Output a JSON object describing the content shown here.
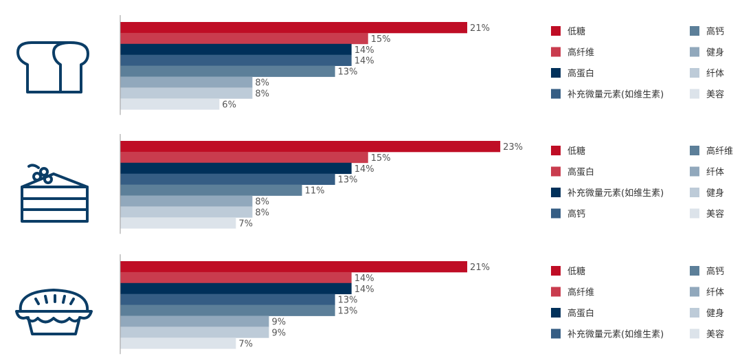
{
  "colors": {
    "palette": [
      "#bf0d25",
      "#c93c4e",
      "#00305a",
      "#355d84",
      "#5c7f99",
      "#91a8bc",
      "#bdcbd8",
      "#dce3ea"
    ],
    "icon": "#0b3d66",
    "axis": "#9a9a9a"
  },
  "chart_data": [
    {
      "type": "bar",
      "orientation": "horizontal",
      "icon": "bread-icon",
      "categories": [
        "低糖",
        "高纤维",
        "高蛋白",
        "补充微量元素(如维生素)",
        "高钙",
        "健身",
        "纤体",
        "美容"
      ],
      "values": [
        21,
        15,
        14,
        14,
        13,
        8,
        8,
        6
      ],
      "value_labels": [
        "21%",
        "15%",
        "14%",
        "14%",
        "13%",
        "8%",
        "8%",
        "6%"
      ],
      "legend": [
        "低糖",
        "高纤维",
        "高蛋白",
        "补充微量元素(如维生素)",
        "高钙",
        "健身",
        "纤体",
        "美容"
      ],
      "legend_position": "right",
      "grid": false
    },
    {
      "type": "bar",
      "orientation": "horizontal",
      "icon": "cake-icon",
      "categories": [
        "低糖",
        "高蛋白",
        "补充微量元素(如维生素)",
        "高钙",
        "高纤维",
        "纤体",
        "健身",
        "美容"
      ],
      "values": [
        23,
        15,
        14,
        13,
        11,
        8,
        8,
        7
      ],
      "value_labels": [
        "23%",
        "15%",
        "14%",
        "13%",
        "11%",
        "8%",
        "8%",
        "7%"
      ],
      "legend": [
        "低糖",
        "高蛋白",
        "补充微量元素(如维生素)",
        "高钙",
        "高纤维",
        "纤体",
        "健身",
        "美容"
      ],
      "legend_position": "right",
      "grid": false
    },
    {
      "type": "bar",
      "orientation": "horizontal",
      "icon": "pie-icon",
      "categories": [
        "低糖",
        "高纤维",
        "高蛋白",
        "补充微量元素(如维生素)",
        "高钙",
        "纤体",
        "健身",
        "美容"
      ],
      "values": [
        21,
        14,
        14,
        13,
        13,
        9,
        9,
        7
      ],
      "value_labels": [
        "21%",
        "14%",
        "14%",
        "13%",
        "13%",
        "9%",
        "9%",
        "7%"
      ],
      "legend": [
        "低糖",
        "高纤维",
        "高蛋白",
        "补充微量元素(如维生素)",
        "高钙",
        "纤体",
        "健身",
        "美容"
      ],
      "legend_position": "right",
      "grid": false
    }
  ]
}
